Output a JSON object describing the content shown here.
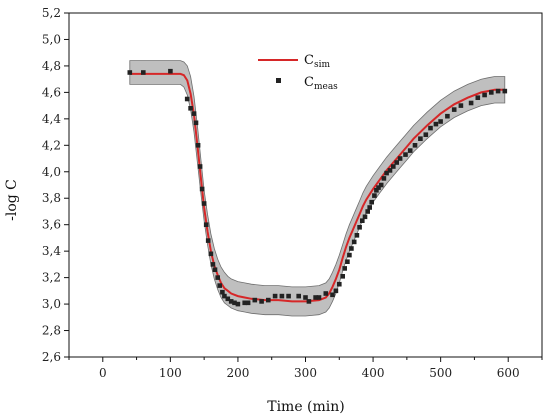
{
  "chart_data": {
    "type": "line",
    "xlabel": "Time (min)",
    "ylabel": "-log C",
    "xlim": [
      -50,
      650
    ],
    "ylim": [
      2.6,
      5.2
    ],
    "x_ticks": [
      0,
      100,
      200,
      300,
      400,
      500,
      600
    ],
    "y_ticks": [
      2.6,
      2.8,
      3.0,
      3.2,
      3.4,
      3.6,
      3.8,
      4.0,
      4.2,
      4.4,
      4.6,
      4.8,
      5.0,
      5.2
    ],
    "grid": false,
    "legend_position": "upper-middle",
    "colors": {
      "sim": "#d62728",
      "meas": "#222222",
      "band": "#aaaaaa"
    },
    "series": [
      {
        "name_main": "C",
        "name_sub": "sim",
        "kind": "line",
        "x": [
          40,
          60,
          80,
          100,
          115,
          120,
          125,
          130,
          135,
          140,
          145,
          150,
          155,
          160,
          165,
          170,
          175,
          180,
          185,
          190,
          200,
          210,
          220,
          240,
          260,
          280,
          300,
          320,
          330,
          335,
          340,
          345,
          350,
          355,
          360,
          365,
          370,
          375,
          380,
          385,
          390,
          400,
          410,
          420,
          430,
          440,
          450,
          460,
          480,
          500,
          520,
          540,
          560,
          570,
          580,
          595
        ],
        "y": [
          4.74,
          4.74,
          4.74,
          4.74,
          4.74,
          4.73,
          4.69,
          4.59,
          4.43,
          4.2,
          3.96,
          3.73,
          3.55,
          3.4,
          3.29,
          3.22,
          3.16,
          3.12,
          3.1,
          3.08,
          3.06,
          3.05,
          3.04,
          3.03,
          3.03,
          3.02,
          3.02,
          3.03,
          3.05,
          3.08,
          3.13,
          3.19,
          3.26,
          3.35,
          3.43,
          3.5,
          3.56,
          3.62,
          3.68,
          3.74,
          3.79,
          3.87,
          3.94,
          4.01,
          4.07,
          4.13,
          4.19,
          4.25,
          4.35,
          4.44,
          4.51,
          4.56,
          4.6,
          4.61,
          4.62,
          4.62
        ]
      },
      {
        "name_main": "C",
        "name_sub": "meas",
        "kind": "scatter",
        "x": [
          40,
          60,
          100,
          125,
          130,
          135,
          138,
          141,
          144,
          147,
          150,
          153,
          156,
          160,
          163,
          166,
          170,
          173,
          177,
          180,
          185,
          190,
          195,
          200,
          210,
          215,
          225,
          235,
          245,
          255,
          265,
          275,
          290,
          300,
          305,
          315,
          320,
          330,
          340,
          345,
          350,
          355,
          358,
          362,
          365,
          368,
          372,
          376,
          380,
          384,
          388,
          392,
          395,
          398,
          402,
          405,
          408,
          412,
          416,
          420,
          425,
          430,
          435,
          440,
          448,
          455,
          462,
          470,
          478,
          485,
          493,
          500,
          510,
          520,
          530,
          545,
          555,
          565,
          575,
          585,
          595
        ],
        "y": [
          4.75,
          4.75,
          4.76,
          4.55,
          4.48,
          4.44,
          4.37,
          4.2,
          4.04,
          3.87,
          3.76,
          3.6,
          3.48,
          3.38,
          3.3,
          3.26,
          3.2,
          3.14,
          3.09,
          3.06,
          3.04,
          3.02,
          3.01,
          3.0,
          3.01,
          3.01,
          3.03,
          3.02,
          3.03,
          3.06,
          3.06,
          3.06,
          3.06,
          3.05,
          3.02,
          3.05,
          3.05,
          3.08,
          3.07,
          3.1,
          3.15,
          3.21,
          3.27,
          3.32,
          3.37,
          3.42,
          3.47,
          3.52,
          3.58,
          3.63,
          3.66,
          3.7,
          3.73,
          3.77,
          3.82,
          3.86,
          3.88,
          3.9,
          3.95,
          3.99,
          4.01,
          4.04,
          4.07,
          4.1,
          4.13,
          4.16,
          4.2,
          4.25,
          4.28,
          4.33,
          4.36,
          4.38,
          4.42,
          4.47,
          4.5,
          4.52,
          4.56,
          4.58,
          4.6,
          4.61,
          4.61
        ]
      }
    ],
    "band": {
      "x": [
        40,
        100,
        115,
        120,
        125,
        130,
        135,
        140,
        145,
        150,
        155,
        160,
        165,
        170,
        175,
        180,
        185,
        190,
        200,
        210,
        220,
        240,
        260,
        280,
        300,
        320,
        330,
        335,
        340,
        345,
        350,
        355,
        360,
        365,
        370,
        375,
        380,
        385,
        390,
        400,
        410,
        420,
        430,
        440,
        450,
        460,
        480,
        500,
        520,
        540,
        560,
        570,
        580,
        595
      ],
      "lower": [
        4.66,
        4.66,
        4.66,
        4.64,
        4.58,
        4.47,
        4.3,
        4.07,
        3.84,
        3.63,
        3.45,
        3.3,
        3.19,
        3.11,
        3.05,
        3.01,
        2.99,
        2.97,
        2.95,
        2.94,
        2.93,
        2.92,
        2.92,
        2.91,
        2.91,
        2.92,
        2.94,
        2.97,
        3.02,
        3.08,
        3.16,
        3.25,
        3.33,
        3.4,
        3.46,
        3.52,
        3.58,
        3.64,
        3.69,
        3.77,
        3.84,
        3.91,
        3.97,
        4.03,
        4.09,
        4.15,
        4.25,
        4.34,
        4.41,
        4.46,
        4.5,
        4.51,
        4.52,
        4.52
      ],
      "upper": [
        4.84,
        4.84,
        4.84,
        4.83,
        4.8,
        4.72,
        4.57,
        4.35,
        4.1,
        3.86,
        3.68,
        3.53,
        3.42,
        3.34,
        3.28,
        3.24,
        3.21,
        3.19,
        3.17,
        3.16,
        3.15,
        3.14,
        3.14,
        3.13,
        3.13,
        3.14,
        3.16,
        3.19,
        3.24,
        3.3,
        3.37,
        3.45,
        3.53,
        3.6,
        3.66,
        3.72,
        3.78,
        3.84,
        3.89,
        3.97,
        4.04,
        4.11,
        4.17,
        4.23,
        4.29,
        4.35,
        4.45,
        4.54,
        4.61,
        4.66,
        4.7,
        4.71,
        4.72,
        4.72
      ]
    }
  }
}
